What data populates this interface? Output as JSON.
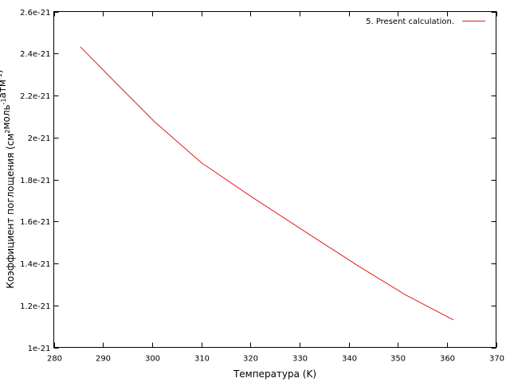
{
  "chart_data": {
    "type": "line",
    "title": "",
    "xlabel": "Температура (K)",
    "ylabel": {
      "parts": [
        {
          "text": "Коэффициент поглощения (см",
          "sup": false
        },
        {
          "text": "2",
          "sup": true
        },
        {
          "text": "моль",
          "sup": false
        },
        {
          "text": "-1",
          "sup": true
        },
        {
          "text": "атм",
          "sup": false
        },
        {
          "text": "-1",
          "sup": true
        },
        {
          "text": ")",
          "sup": false
        }
      ]
    },
    "xlim": [
      280,
      370
    ],
    "ylim": [
      1e-21,
      2.6e-21
    ],
    "xticks": [
      {
        "value": 280,
        "label": "280"
      },
      {
        "value": 290,
        "label": "290"
      },
      {
        "value": 300,
        "label": "300"
      },
      {
        "value": 310,
        "label": "310"
      },
      {
        "value": 320,
        "label": "320"
      },
      {
        "value": 330,
        "label": "330"
      },
      {
        "value": 340,
        "label": "340"
      },
      {
        "value": 350,
        "label": "350"
      },
      {
        "value": 360,
        "label": "360"
      },
      {
        "value": 370,
        "label": "370"
      }
    ],
    "yticks": [
      {
        "value": 1e-21,
        "label": "1e-21"
      },
      {
        "value": 1.2e-21,
        "label": "1.2e-21"
      },
      {
        "value": 1.4e-21,
        "label": "1.4e-21"
      },
      {
        "value": 1.6e-21,
        "label": "1.6e-21"
      },
      {
        "value": 1.8e-21,
        "label": "1.8e-21"
      },
      {
        "value": 2e-21,
        "label": "2e-21"
      },
      {
        "value": 2.2e-21,
        "label": "2.2e-21"
      },
      {
        "value": 2.4e-21,
        "label": "2.4e-21"
      },
      {
        "value": 2.6e-21,
        "label": "2.6e-21"
      }
    ],
    "grid": false,
    "legend_position": "top-right",
    "series": [
      {
        "name": "5. Present calculation.",
        "color": "#e41a1c",
        "x": [
          285.4,
          293.1,
          300.5,
          310.1,
          320.4,
          331.1,
          341.9,
          351.6,
          361.3
        ],
        "y": [
          2.432e-21,
          2.249e-21,
          2.075e-21,
          1.879e-21,
          1.715e-21,
          1.552e-21,
          1.389e-21,
          1.25e-21,
          1.131e-21
        ]
      }
    ]
  }
}
